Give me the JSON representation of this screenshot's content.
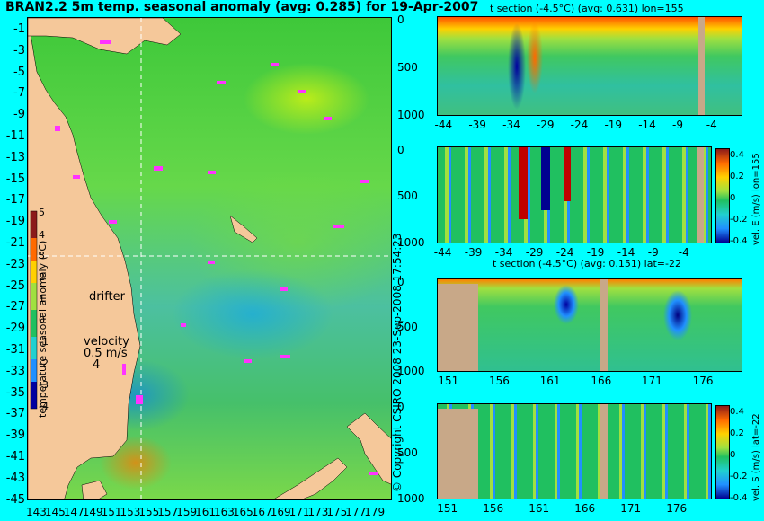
{
  "title": "BRAN2.2 5m temp. seasonal anomaly (avg: 0.285) for 19-Apr-2007",
  "copyright": "© Copyright CSIRO 2008  23-Sep-2008 17:54:23",
  "map": {
    "lat_ticks": [
      "-1",
      "-3",
      "-5",
      "-7",
      "-9",
      "-11",
      "-13",
      "-15",
      "-17",
      "-19",
      "-21",
      "-23",
      "-25",
      "-27",
      "-29",
      "-31",
      "-33",
      "-35",
      "-37",
      "-39",
      "-41",
      "-43",
      "-45"
    ],
    "lon_ticks": [
      "143",
      "145",
      "147",
      "149",
      "151",
      "153",
      "155",
      "157",
      "159",
      "161",
      "163",
      "165",
      "167",
      "169",
      "171",
      "173",
      "175",
      "177",
      "179"
    ],
    "drifter_label": "drifter",
    "velocity_label": "velocity",
    "velocity_value": "0.5 m/s",
    "velocity_value2": "4",
    "colorbar_label": "temperature seasonal anomaly (°C)",
    "colorbar_ticks": [
      "5",
      "4",
      "3",
      "2",
      "1",
      "0",
      "-1",
      "-2",
      "-3",
      "-4"
    ],
    "colors": {
      "ocean": "#46c06a",
      "land": "#f5c89a",
      "drifter": "#ff33ff",
      "contour": "#00ffff"
    }
  },
  "panels": [
    {
      "title": "t section (-4.5°C) (avg: 0.631) lon=155",
      "x_ticks": [
        "-44",
        "-39",
        "-34",
        "-29",
        "-24",
        "-19",
        "-14",
        "-9",
        "-4"
      ],
      "y_ticks": [
        "0",
        "500",
        "1000"
      ],
      "side_label": ""
    },
    {
      "title": "",
      "x_ticks": [
        "-44",
        "-39",
        "-34",
        "-29",
        "-24",
        "-19",
        "-14",
        "-9",
        "-4"
      ],
      "y_ticks": [
        "0",
        "500",
        "1000"
      ],
      "side_label": "vel. E (m/s) lon=155",
      "cb_ticks": [
        "0.4",
        "0.2",
        "0",
        "-0.2",
        "-0.4"
      ]
    },
    {
      "title": "t section (-4.5°C) (avg: 0.151) lat=-22",
      "x_ticks": [
        "151",
        "156",
        "161",
        "166",
        "171",
        "176"
      ],
      "y_ticks": [
        "0",
        "500",
        "1000"
      ],
      "side_label": ""
    },
    {
      "title": "",
      "x_ticks": [
        "151",
        "156",
        "161",
        "166",
        "171",
        "176"
      ],
      "y_ticks": [
        "0",
        "500",
        "1000"
      ],
      "side_label": "vel. S (m/s) lat=-22",
      "cb_ticks": [
        "0.4",
        "0.2",
        "0",
        "-0.2",
        "-0.4"
      ]
    }
  ],
  "chart_data": [
    {
      "type": "heatmap",
      "title": "BRAN2.2 5m temp. seasonal anomaly (avg: 0.285) for 19-Apr-2007",
      "xlabel": "",
      "ylabel": "",
      "xlim": [
        142,
        180
      ],
      "ylim": [
        -45,
        0
      ],
      "colorbar": {
        "label": "temperature seasonal anomaly (°C)",
        "range": [
          -4,
          5
        ]
      }
    },
    {
      "type": "heatmap",
      "title": "t section (-4.5°C) (avg: 0.631) lon=155",
      "xlim": [
        -45,
        0
      ],
      "ylim": [
        1050,
        0
      ]
    },
    {
      "type": "heatmap",
      "title": "",
      "xlim": [
        -45,
        0
      ],
      "ylim": [
        1050,
        0
      ],
      "colorbar": {
        "label": "vel. E (m/s) lon=155",
        "range": [
          -0.4,
          0.4
        ]
      }
    },
    {
      "type": "heatmap",
      "title": "t section (-4.5°C) (avg: 0.151) lat=-22",
      "xlim": [
        150,
        180
      ],
      "ylim": [
        1050,
        0
      ]
    },
    {
      "type": "heatmap",
      "title": "",
      "xlim": [
        150,
        180
      ],
      "ylim": [
        1050,
        0
      ],
      "colorbar": {
        "label": "vel. S (m/s) lat=-22",
        "range": [
          -0.4,
          0.4
        ]
      }
    }
  ]
}
